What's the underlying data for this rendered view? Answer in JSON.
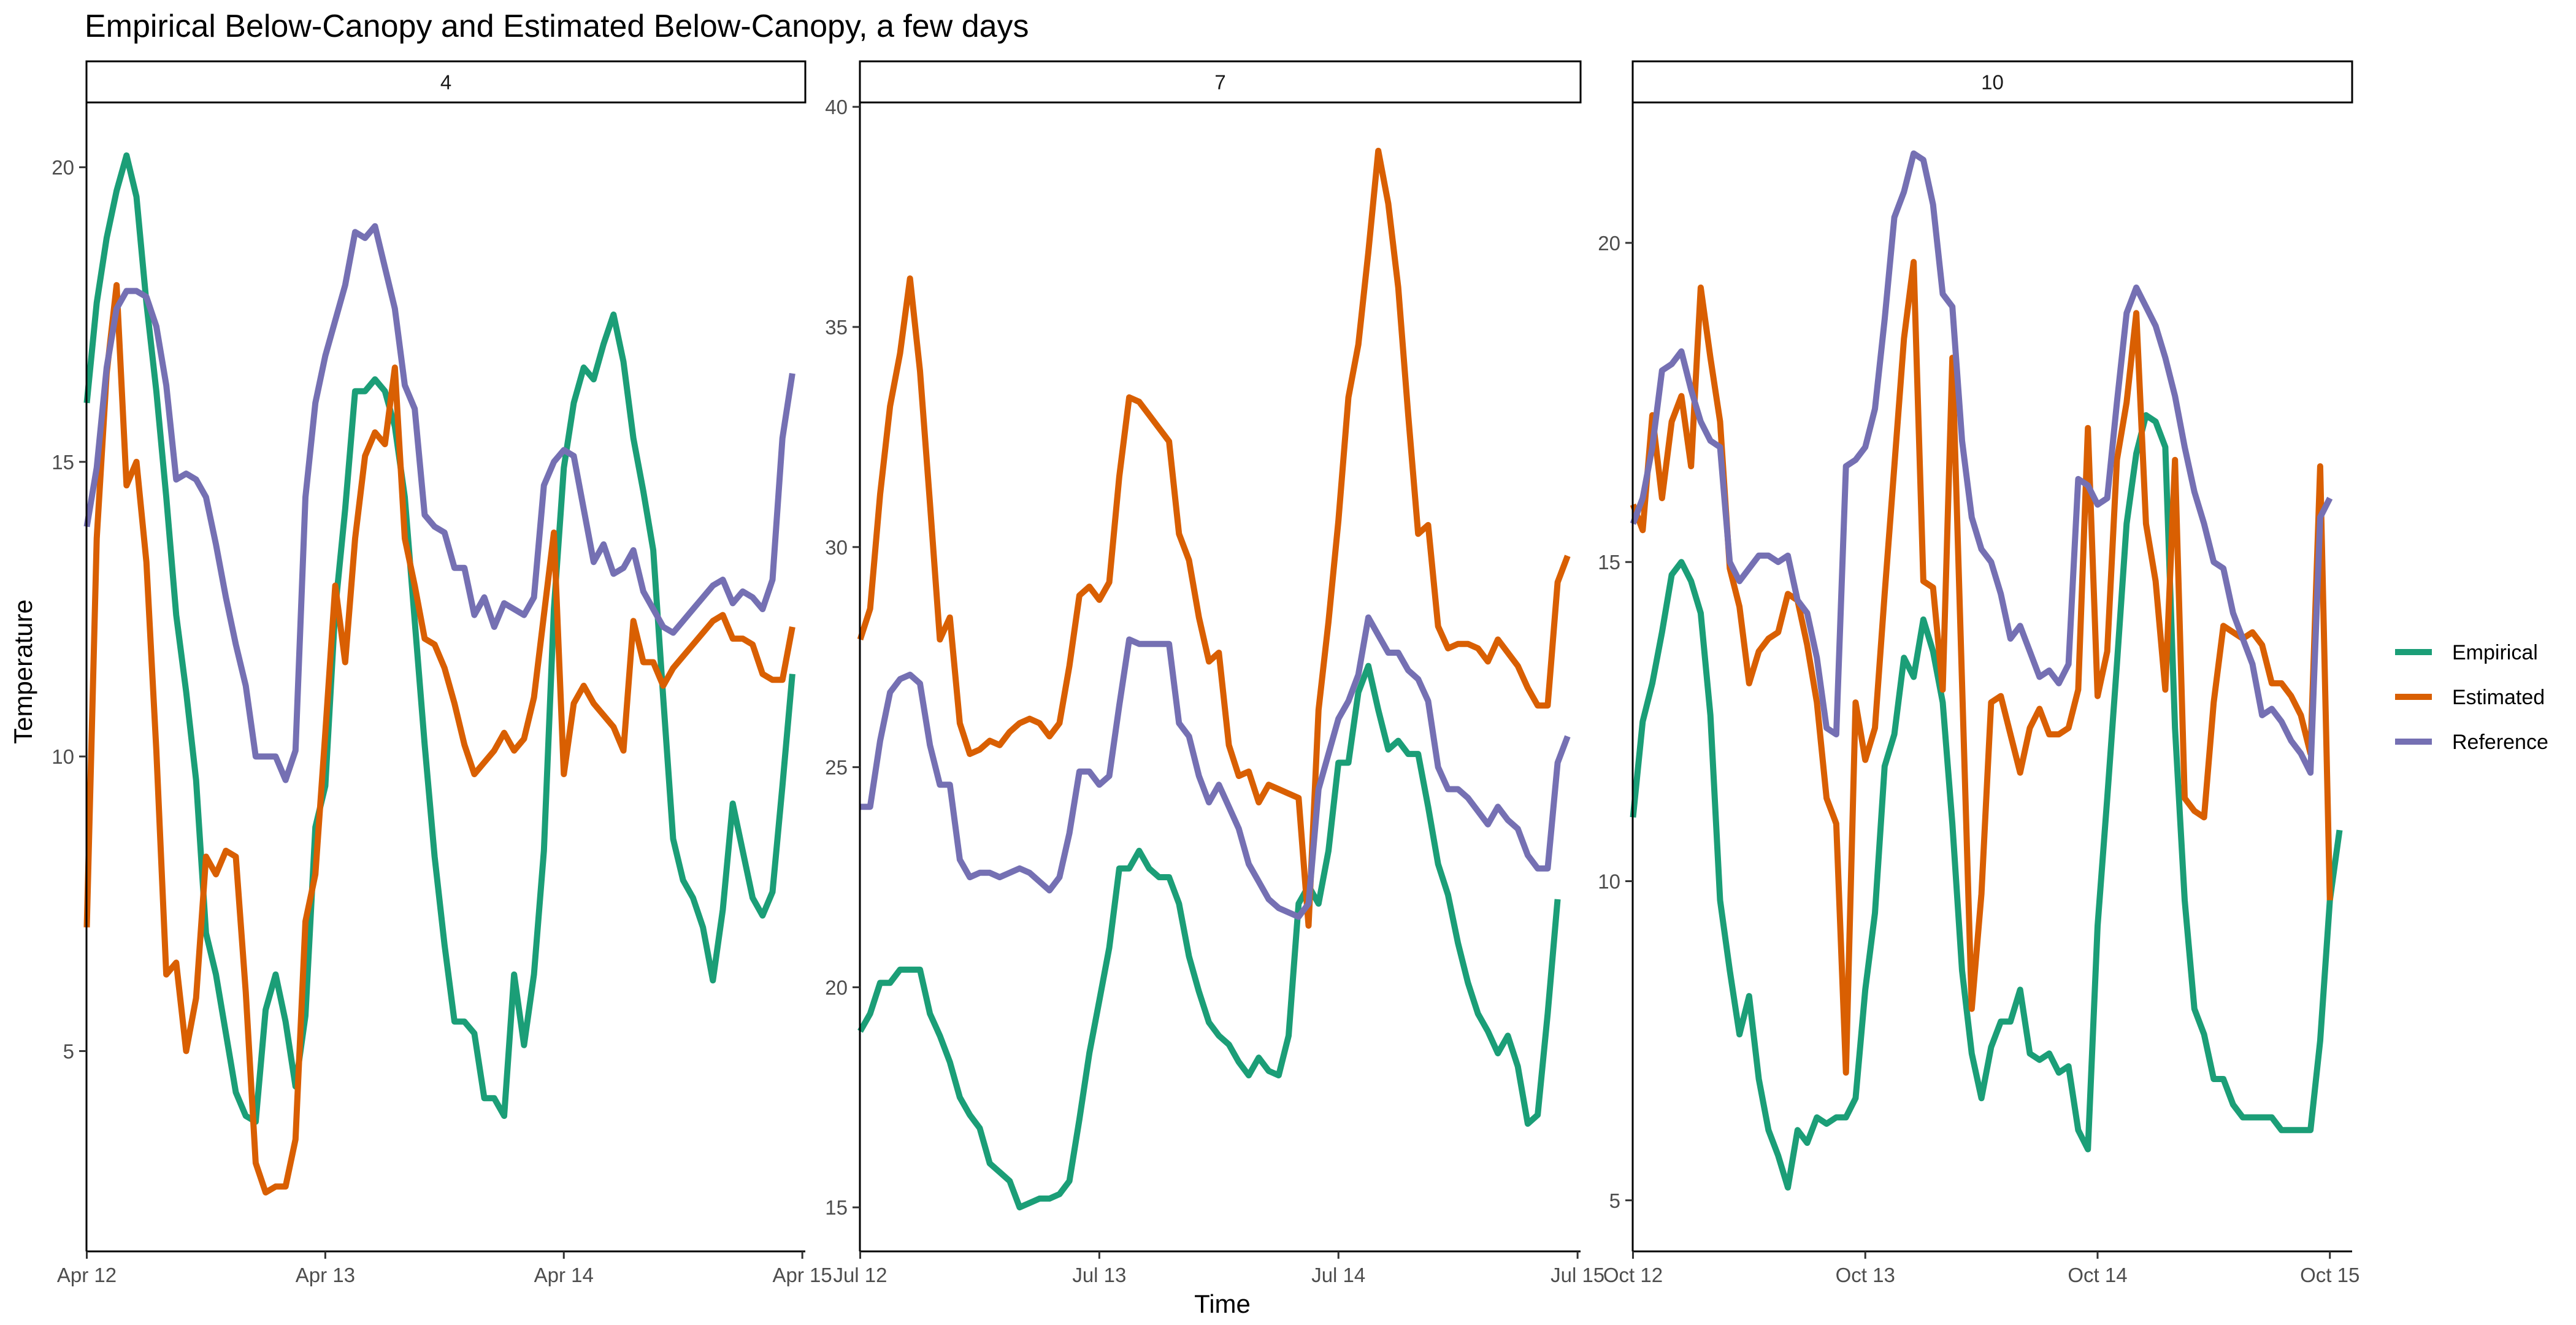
{
  "chart_data": {
    "type": "line",
    "title": "Empirical Below-Canopy and Estimated Below-Canopy, a few days",
    "xlabel": "Time",
    "ylabel": "Temperature",
    "facet_layout": "1 row, 3 columns, free y scales",
    "legend_position": "right",
    "grid": false,
    "series_colors": {
      "Empirical": "#1b9e77",
      "Estimated": "#d95f02",
      "Reference": "#7570b3"
    },
    "legend": [
      {
        "name": "Empirical",
        "color": "#1b9e77"
      },
      {
        "name": "Estimated",
        "color": "#d95f02"
      },
      {
        "name": "Reference",
        "color": "#7570b3"
      }
    ],
    "panels": [
      {
        "strip": "4",
        "x_ticks": [
          "Apr 12",
          "Apr 13",
          "Apr 14",
          "Apr 15"
        ],
        "xlim": [
          -0.03,
          72.3
        ],
        "y_ticks": [
          5,
          10,
          15,
          20
        ],
        "ylim": [
          1.6,
          21.1
        ],
        "series": [
          {
            "name": "Empirical",
            "values": [
              16.0,
              17.7,
              18.8,
              19.6,
              20.2,
              19.5,
              17.7,
              16.2,
              14.4,
              12.4,
              11.1,
              9.6,
              7.0,
              6.3,
              5.3,
              4.3,
              3.9,
              3.8,
              5.7,
              6.3,
              5.5,
              4.4,
              5.6,
              8.8,
              9.5,
              12.5,
              14.2,
              16.2,
              16.2,
              16.4,
              16.2,
              15.6,
              14.4,
              12.3,
              10.2,
              8.3,
              6.8,
              5.5,
              5.5,
              5.3,
              4.2,
              4.2,
              3.9,
              6.3,
              5.1,
              6.3,
              8.4,
              12.5,
              14.9,
              16.0,
              16.6,
              16.4,
              17.0,
              17.5,
              16.7,
              15.4,
              14.5,
              13.5,
              11.0,
              8.6,
              7.9,
              7.6,
              7.1,
              6.2,
              7.4,
              9.2,
              8.4,
              7.6,
              7.3,
              7.7,
              9.5,
              11.4
            ]
          },
          {
            "name": "Estimated",
            "values": [
              7.1,
              13.7,
              16.5,
              18.0,
              14.6,
              15.0,
              13.3,
              10.1,
              6.3,
              6.5,
              5.0,
              5.9,
              8.3,
              8.0,
              8.4,
              8.3,
              6.0,
              3.1,
              2.6,
              2.7,
              2.7,
              3.5,
              7.2,
              8.0,
              10.4,
              12.9,
              11.6,
              13.7,
              15.1,
              15.5,
              15.3,
              16.6,
              13.7,
              12.9,
              12.0,
              11.9,
              11.5,
              10.9,
              10.2,
              9.7,
              9.9,
              10.1,
              10.4,
              10.1,
              10.3,
              11.0,
              12.4,
              13.8,
              9.7,
              10.9,
              11.2,
              10.9,
              10.7,
              10.5,
              10.1,
              12.3,
              11.6,
              11.6,
              11.2,
              11.5,
              11.7,
              11.9,
              12.1,
              12.3,
              12.4,
              12.0,
              12.0,
              11.9,
              11.4,
              11.3,
              11.3,
              12.2
            ]
          },
          {
            "name": "Reference",
            "values": [
              13.9,
              14.9,
              16.6,
              17.6,
              17.9,
              17.9,
              17.8,
              17.3,
              16.3,
              14.7,
              14.8,
              14.7,
              14.4,
              13.6,
              12.7,
              11.9,
              11.2,
              10.0,
              10.0,
              10.0,
              9.6,
              10.1,
              14.4,
              16.0,
              16.8,
              17.4,
              18.0,
              18.9,
              18.8,
              19.0,
              18.3,
              17.6,
              16.3,
              15.9,
              14.1,
              13.9,
              13.8,
              13.2,
              13.2,
              12.4,
              12.7,
              12.2,
              12.6,
              12.5,
              12.4,
              12.7,
              14.6,
              15.0,
              15.2,
              15.1,
              14.2,
              13.3,
              13.6,
              13.1,
              13.2,
              13.5,
              12.8,
              12.5,
              12.2,
              12.1,
              12.3,
              12.5,
              12.7,
              12.9,
              13.0,
              12.6,
              12.8,
              12.7,
              12.5,
              13.0,
              15.4,
              16.5
            ]
          }
        ]
      },
      {
        "strip": "7",
        "x_ticks": [
          "Jul 12",
          "Jul 13",
          "Jul 14",
          "Jul 15"
        ],
        "xlim": [
          -0.03,
          72.3
        ],
        "y_ticks": [
          15,
          20,
          25,
          30,
          35,
          40
        ],
        "ylim": [
          14.0,
          40.1
        ],
        "series": [
          {
            "name": "Empirical",
            "values": [
              19.0,
              19.4,
              20.1,
              20.1,
              20.4,
              20.4,
              20.4,
              19.4,
              18.9,
              18.3,
              17.5,
              17.1,
              16.8,
              16.0,
              15.8,
              15.6,
              15.0,
              15.1,
              15.2,
              15.2,
              15.3,
              15.6,
              17.0,
              18.5,
              19.7,
              20.9,
              22.7,
              22.7,
              23.1,
              22.7,
              22.5,
              22.5,
              21.9,
              20.7,
              19.9,
              19.2,
              18.9,
              18.7,
              18.3,
              18.0,
              18.4,
              18.1,
              18.0,
              18.9,
              21.9,
              22.3,
              21.9,
              23.1,
              25.1,
              25.1,
              26.7,
              27.3,
              26.3,
              25.4,
              25.6,
              25.3,
              25.3,
              24.1,
              22.8,
              22.1,
              21.0,
              20.1,
              19.4,
              19.0,
              18.5,
              18.9,
              18.2,
              16.9,
              17.1,
              19.4,
              22.0
            ]
          },
          {
            "name": "Estimated",
            "values": [
              27.9,
              28.6,
              31.2,
              33.2,
              34.4,
              36.1,
              34.0,
              31.0,
              27.9,
              28.4,
              26.0,
              25.3,
              25.4,
              25.6,
              25.5,
              25.8,
              26.0,
              26.1,
              26.0,
              25.7,
              26.0,
              27.3,
              28.9,
              29.1,
              28.8,
              29.2,
              31.6,
              33.4,
              33.3,
              33.0,
              32.7,
              32.4,
              30.3,
              29.7,
              28.4,
              27.4,
              27.6,
              25.5,
              24.8,
              24.9,
              24.2,
              24.6,
              24.5,
              24.4,
              24.3,
              21.4,
              26.3,
              28.3,
              30.6,
              33.4,
              34.6,
              36.7,
              39.0,
              37.8,
              35.9,
              33.0,
              30.3,
              30.5,
              28.2,
              27.7,
              27.8,
              27.8,
              27.7,
              27.4,
              27.9,
              27.6,
              27.3,
              26.8,
              26.4,
              26.4,
              29.2,
              29.8
            ]
          },
          {
            "name": "Reference",
            "values": [
              24.1,
              24.1,
              25.6,
              26.7,
              27.0,
              27.1,
              26.9,
              25.5,
              24.6,
              24.6,
              22.9,
              22.5,
              22.6,
              22.6,
              22.5,
              22.6,
              22.7,
              22.6,
              22.4,
              22.2,
              22.5,
              23.5,
              24.9,
              24.9,
              24.6,
              24.8,
              26.4,
              27.9,
              27.8,
              27.8,
              27.8,
              27.8,
              26.0,
              25.7,
              24.8,
              24.2,
              24.6,
              24.1,
              23.6,
              22.8,
              22.4,
              22.0,
              21.8,
              21.7,
              21.6,
              21.9,
              24.5,
              25.3,
              26.1,
              26.5,
              27.1,
              28.4,
              28.0,
              27.6,
              27.6,
              27.2,
              27.0,
              26.5,
              25.0,
              24.5,
              24.5,
              24.3,
              24.0,
              23.7,
              24.1,
              23.8,
              23.6,
              23.0,
              22.7,
              22.7,
              25.1,
              25.7
            ]
          }
        ]
      },
      {
        "strip": "10",
        "x_ticks": [
          "Oct 12",
          "Oct 13",
          "Oct 14",
          "Oct 15"
        ],
        "xlim": [
          -0.03,
          74.3
        ],
        "y_ticks": [
          5,
          10,
          15,
          20
        ],
        "ylim": [
          4.2,
          22.2
        ],
        "series": [
          {
            "name": "Empirical",
            "values": [
              11.0,
              12.5,
              13.1,
              13.9,
              14.8,
              15.0,
              14.7,
              14.2,
              12.6,
              9.7,
              8.6,
              7.6,
              8.2,
              6.9,
              6.1,
              5.7,
              5.2,
              6.1,
              5.9,
              6.3,
              6.2,
              6.3,
              6.3,
              6.6,
              8.3,
              9.5,
              11.8,
              12.3,
              13.5,
              13.2,
              14.1,
              13.6,
              12.8,
              10.9,
              8.6,
              7.3,
              6.6,
              7.4,
              7.8,
              7.8,
              8.3,
              7.3,
              7.2,
              7.3,
              7.0,
              7.1,
              6.1,
              5.8,
              9.3,
              11.3,
              13.4,
              15.6,
              16.7,
              17.3,
              17.2,
              16.8,
              12.4,
              9.7,
              8.0,
              7.6,
              6.9,
              6.9,
              6.5,
              6.3,
              6.3,
              6.3,
              6.3,
              6.1,
              6.1,
              6.1,
              6.1,
              7.5,
              9.7,
              10.8
            ]
          },
          {
            "name": "Estimated",
            "values": [
              15.9,
              15.5,
              17.3,
              16.0,
              17.2,
              17.6,
              16.5,
              19.3,
              18.2,
              17.2,
              14.9,
              14.3,
              13.1,
              13.6,
              13.8,
              13.9,
              14.5,
              14.4,
              13.7,
              12.8,
              11.3,
              10.9,
              7.0,
              12.8,
              11.9,
              12.4,
              14.5,
              16.5,
              18.5,
              19.7,
              14.7,
              14.6,
              13.0,
              18.2,
              13.1,
              8.0,
              9.8,
              12.8,
              12.9,
              12.3,
              11.7,
              12.4,
              12.7,
              12.3,
              12.3,
              12.4,
              13.0,
              17.1,
              12.9,
              13.6,
              16.6,
              17.5,
              18.9,
              15.6,
              14.7,
              13.0,
              16.6,
              11.3,
              11.1,
              11.0,
              12.8,
              14.0,
              13.9,
              13.8,
              13.9,
              13.7,
              13.1,
              13.1,
              12.9,
              12.6,
              12.0,
              16.5,
              9.7
            ]
          },
          {
            "name": "Reference",
            "values": [
              15.6,
              16.0,
              16.8,
              18.0,
              18.1,
              18.3,
              17.7,
              17.2,
              16.9,
              16.8,
              15.0,
              14.7,
              14.9,
              15.1,
              15.1,
              15.0,
              15.1,
              14.4,
              14.2,
              13.5,
              12.4,
              12.3,
              16.5,
              16.6,
              16.8,
              17.4,
              18.8,
              20.4,
              20.8,
              21.4,
              21.3,
              20.6,
              19.2,
              19.0,
              16.9,
              15.7,
              15.2,
              15.0,
              14.5,
              13.8,
              14.0,
              13.6,
              13.2,
              13.3,
              13.1,
              13.4,
              16.3,
              16.2,
              15.9,
              16.0,
              17.5,
              18.9,
              19.3,
              19.0,
              18.7,
              18.2,
              17.6,
              16.8,
              16.1,
              15.6,
              15.0,
              14.9,
              14.2,
              13.8,
              13.4,
              12.6,
              12.7,
              12.5,
              12.2,
              12.0,
              11.7,
              15.7,
              16.0
            ]
          }
        ]
      }
    ]
  }
}
